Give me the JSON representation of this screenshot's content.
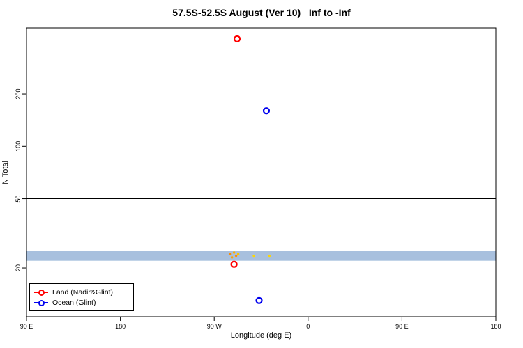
{
  "chart_data": {
    "type": "scatter",
    "title": "57.5S-52.5S August (Ver 10)   Inf to -Inf",
    "xlabel": "Longitude (deg E)",
    "ylabel": "N Total",
    "x_axis": {
      "domain_extended_deg": [
        90,
        540
      ],
      "ticks": [
        {
          "v": 90,
          "label": "90 E"
        },
        {
          "v": 180,
          "label": "180"
        },
        {
          "v": 270,
          "label": "90 W"
        },
        {
          "v": 360,
          "label": "0"
        },
        {
          "v": 450,
          "label": "90 E"
        },
        {
          "v": 540,
          "label": "180"
        }
      ]
    },
    "y_axis": {
      "scale": "log10",
      "range": [
        10.5,
        480
      ],
      "ticks": [
        20,
        50,
        100,
        200
      ]
    },
    "reference_line_y": 50,
    "band": {
      "ymin": 22,
      "ymax": 25,
      "color": "#a8c0de"
    },
    "series": [
      {
        "name": "Land (Nadir&Glint)",
        "color": "#ff0000",
        "marker": "open-circle",
        "points": [
          {
            "x": 292,
            "y": 415
          },
          {
            "x": 289,
            "y": 21
          }
        ]
      },
      {
        "name": "Ocean (Glint)",
        "color": "#0000ee",
        "marker": "open-circle",
        "points": [
          {
            "x": 320,
            "y": 160
          },
          {
            "x": 313,
            "y": 13
          }
        ]
      }
    ],
    "minor_points": [
      {
        "x": 285,
        "y": 24,
        "color": "#ff8c00"
      },
      {
        "x": 287,
        "y": 23,
        "color": "#ffa500"
      },
      {
        "x": 289,
        "y": 24.5,
        "color": "#ffb000"
      },
      {
        "x": 291,
        "y": 23.5,
        "color": "#ff8c00"
      },
      {
        "x": 293,
        "y": 24,
        "color": "#ffc400"
      },
      {
        "x": 308,
        "y": 23.5,
        "color": "#ffd700"
      },
      {
        "x": 323,
        "y": 23.5,
        "color": "#ffd700"
      }
    ],
    "legend": {
      "items": [
        {
          "label": "Land (Nadir&Glint)",
          "color": "#ff0000"
        },
        {
          "label": "Ocean (Glint)",
          "color": "#0000ee"
        }
      ]
    }
  }
}
